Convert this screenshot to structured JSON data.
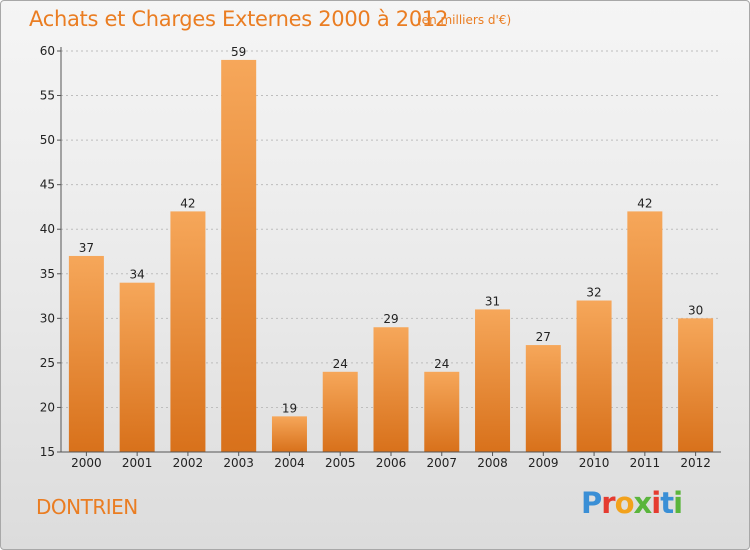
{
  "header": {
    "title": "Achats et Charges Externes 2000 à 2012",
    "unit_note": "(en milliers d'€)"
  },
  "footer": {
    "city": "DONTRIEN",
    "logo_text": "Proxiti",
    "logo_colors": [
      "#3a8fd6",
      "#e53b30",
      "#f2a21c",
      "#5ab53c",
      "#e53b30",
      "#3a8fd6",
      "#5ab53c"
    ]
  },
  "colors": {
    "bar_top": "#f6a75a",
    "bar_bottom": "#d8711b",
    "axis": "#555555",
    "grid": "#bdbdbd",
    "accent": "#ea7d22"
  },
  "chart_data": {
    "type": "bar",
    "title": "Achats et Charges Externes 2000 à 2012",
    "subtitle": "(en milliers d'€)",
    "xlabel": "",
    "ylabel": "",
    "categories": [
      "2000",
      "2001",
      "2002",
      "2003",
      "2004",
      "2005",
      "2006",
      "2007",
      "2008",
      "2009",
      "2010",
      "2011",
      "2012"
    ],
    "values": [
      37,
      34,
      42,
      59,
      19,
      24,
      29,
      24,
      31,
      27,
      32,
      42,
      30
    ],
    "ylim": [
      15,
      60
    ],
    "yticks": [
      15,
      20,
      25,
      30,
      35,
      40,
      45,
      50,
      55,
      60
    ],
    "grid": true,
    "legend": "none"
  }
}
